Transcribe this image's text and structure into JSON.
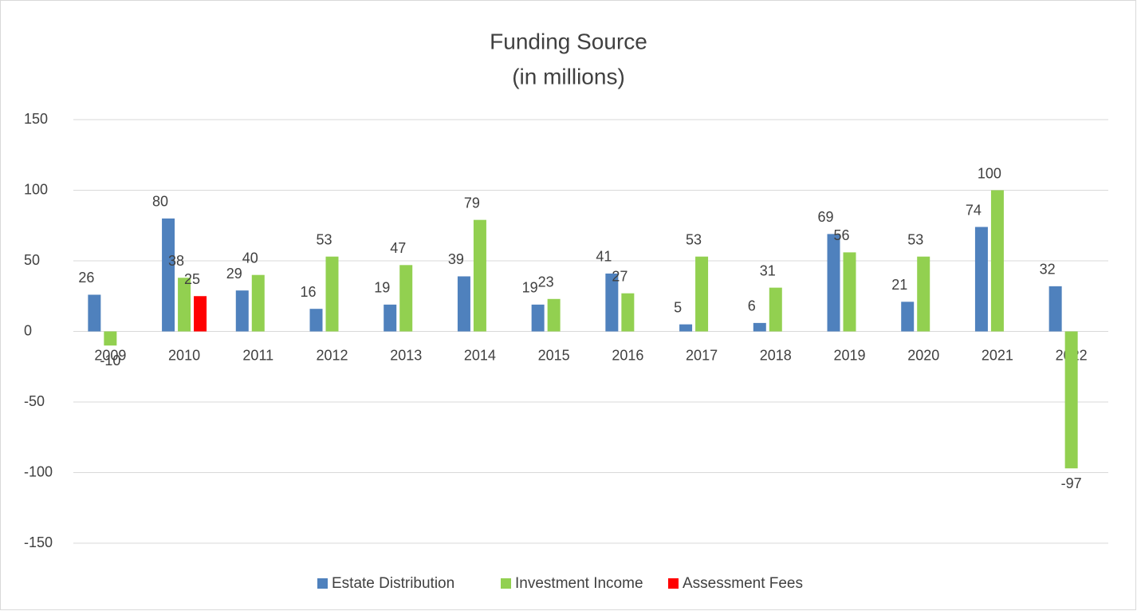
{
  "chart_data": {
    "type": "bar",
    "title": "Funding Source",
    "subtitle": "(in millions)",
    "categories": [
      "2009",
      "2010",
      "2011",
      "2012",
      "2013",
      "2014",
      "2015",
      "2016",
      "2017",
      "2018",
      "2019",
      "2020",
      "2021",
      "2022"
    ],
    "series": [
      {
        "name": "Estate Distribution",
        "color": "#4f81bd",
        "values": [
          26,
          80,
          29,
          16,
          19,
          39,
          19,
          41,
          5,
          6,
          69,
          21,
          74,
          32
        ]
      },
      {
        "name": "Investment Income",
        "color": "#92d050",
        "values": [
          -10,
          38,
          40,
          53,
          47,
          79,
          23,
          27,
          53,
          31,
          56,
          53,
          100,
          -97
        ]
      },
      {
        "name": "Assessment Fees",
        "color": "#ff0000",
        "values": [
          null,
          25,
          null,
          null,
          null,
          null,
          null,
          null,
          null,
          null,
          null,
          null,
          null,
          null
        ]
      }
    ],
    "ylim": [
      -150,
      150
    ],
    "yticks": [
      -150,
      -100,
      -50,
      0,
      50,
      100,
      150
    ],
    "grid": true,
    "legend": "bottom"
  }
}
